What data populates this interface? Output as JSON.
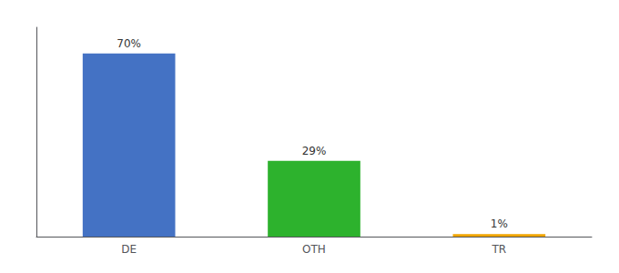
{
  "chart_data": {
    "type": "bar",
    "categories": [
      "DE",
      "OTH",
      "TR"
    ],
    "values": [
      70,
      29,
      1
    ],
    "value_labels": [
      "70%",
      "29%",
      "1%"
    ],
    "colors": [
      "#4472c4",
      "#2db22d",
      "#f0a500"
    ],
    "ylim": [
      0,
      80
    ],
    "data_labels": true,
    "tick_labels": "x",
    "grid": false
  }
}
